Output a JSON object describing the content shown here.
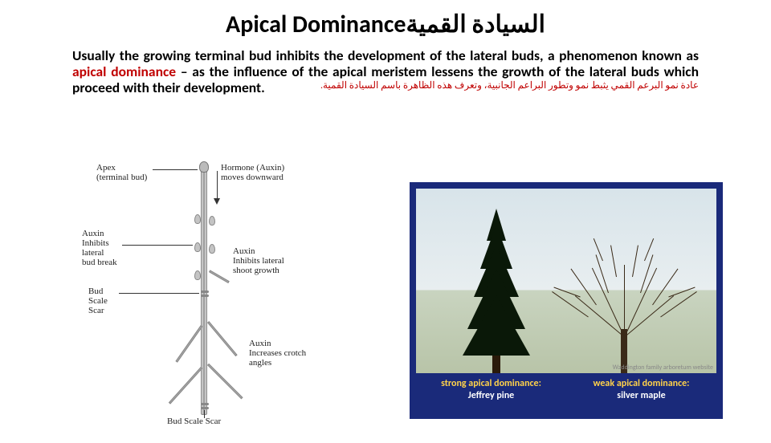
{
  "title": {
    "en": "Apical Dominance",
    "ar": "السيادة القمية"
  },
  "paragraph": {
    "lead": "Usually the growing terminal bud inhibits the development of the lateral buds, a phenomenon known as ",
    "term": "apical dominance",
    "rest": " – as the influence of the apical meristem lessens the growth of the lateral buds which proceed with their development.",
    "ar": "عادة نمو البرعم القمي يثبط نمو وتطور البراعم الجانبية، وتعرف هذه الظاهرة باسم السيادة القمية."
  },
  "diagram": {
    "labels": {
      "apex": "Apex\n(terminal bud)",
      "hormone": "Hormone (Auxin)\nmoves downward",
      "auxin_inhibits_bud": "Auxin\nInhibits\nlateral\nbud break",
      "auxin_inhibits_shoot": "Auxin\nInhibits lateral\nshoot growth",
      "bud_scale_scar_a": "Bud\nScale\nScar",
      "auxin_crotch": "Auxin\nIncreases crotch\nangles",
      "bud_scale_scar_b": "Bud Scale Scar"
    },
    "colors": {
      "line": "#333333",
      "text": "#222222"
    },
    "label_fontsize": 11
  },
  "photo": {
    "bg_color": "#1a2a7a",
    "credit": "Waddington family arboretum website",
    "captions": {
      "left": {
        "line1": "strong apical dominance:",
        "line2": "Jeffrey pine"
      },
      "right": {
        "line1": "weak apical dominance:",
        "line2": "silver maple"
      }
    },
    "caption_color": "#ffd24a",
    "name_color": "#ffffff"
  }
}
